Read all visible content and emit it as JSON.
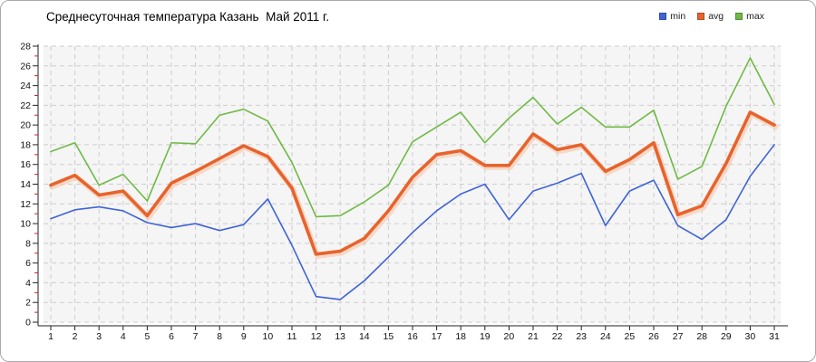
{
  "window": {
    "background": "#ffffff",
    "border_color": "#a9a9a9"
  },
  "title": "Среднесуточная температура Казань  Май 2011 г.",
  "legend": {
    "position": "top-right",
    "items": [
      {
        "label": "min",
        "color": "#3e63d6"
      },
      {
        "label": "avg",
        "color": "#e8632c"
      },
      {
        "label": "max",
        "color": "#6fb944"
      }
    ]
  },
  "axes": {
    "y_ticks": [
      0,
      2,
      4,
      6,
      8,
      10,
      12,
      14,
      16,
      18,
      20,
      22,
      24,
      26,
      28
    ],
    "y_minor_ticks_every_odd": true,
    "minor_tick_color": "#cc2222",
    "grid_color": "#cdcdcd",
    "plot_background": "#f5f5f5"
  },
  "chart_data": {
    "type": "line",
    "title": "Среднесуточная температура Казань  Май 2011 г.",
    "xlabel": "",
    "ylabel": "",
    "x": [
      1,
      2,
      3,
      4,
      5,
      6,
      7,
      8,
      9,
      10,
      11,
      12,
      13,
      14,
      15,
      16,
      17,
      18,
      19,
      20,
      21,
      22,
      23,
      24,
      25,
      26,
      27,
      28,
      29,
      30,
      31
    ],
    "ylim": [
      0,
      28
    ],
    "ytick_step": 2,
    "grid": "dashed",
    "legend_position": "top-right",
    "series": [
      {
        "name": "min",
        "color": "#3e63d6",
        "width": 1.6,
        "values": [
          10.5,
          11.4,
          11.7,
          11.3,
          10.1,
          9.6,
          10.0,
          9.3,
          9.9,
          12.5,
          7.8,
          2.6,
          2.3,
          4.2,
          6.6,
          9.1,
          11.3,
          13.0,
          14.0,
          10.4,
          13.3,
          14.1,
          15.1,
          9.8,
          13.3,
          14.4,
          9.8,
          8.4,
          10.4,
          14.8,
          18.0
        ]
      },
      {
        "name": "avg",
        "color": "#e8632c",
        "width": 3.6,
        "values": [
          13.9,
          14.9,
          12.9,
          13.3,
          10.8,
          14.1,
          15.3,
          16.6,
          17.9,
          16.8,
          13.6,
          6.9,
          7.2,
          8.5,
          11.3,
          14.7,
          17.0,
          17.4,
          15.9,
          15.9,
          19.1,
          17.5,
          18.0,
          15.3,
          16.5,
          18.2,
          10.9,
          11.8,
          16.1,
          21.3,
          20.0
        ]
      },
      {
        "name": "max",
        "color": "#6fb944",
        "width": 1.6,
        "values": [
          17.3,
          18.2,
          13.9,
          15.0,
          12.3,
          18.2,
          18.1,
          21.0,
          21.6,
          20.4,
          16.2,
          10.7,
          10.8,
          12.2,
          13.9,
          18.3,
          19.8,
          21.3,
          18.2,
          20.7,
          22.8,
          20.1,
          21.8,
          19.8,
          19.8,
          21.5,
          14.5,
          15.8,
          21.9,
          26.8,
          22.1
        ]
      }
    ]
  }
}
